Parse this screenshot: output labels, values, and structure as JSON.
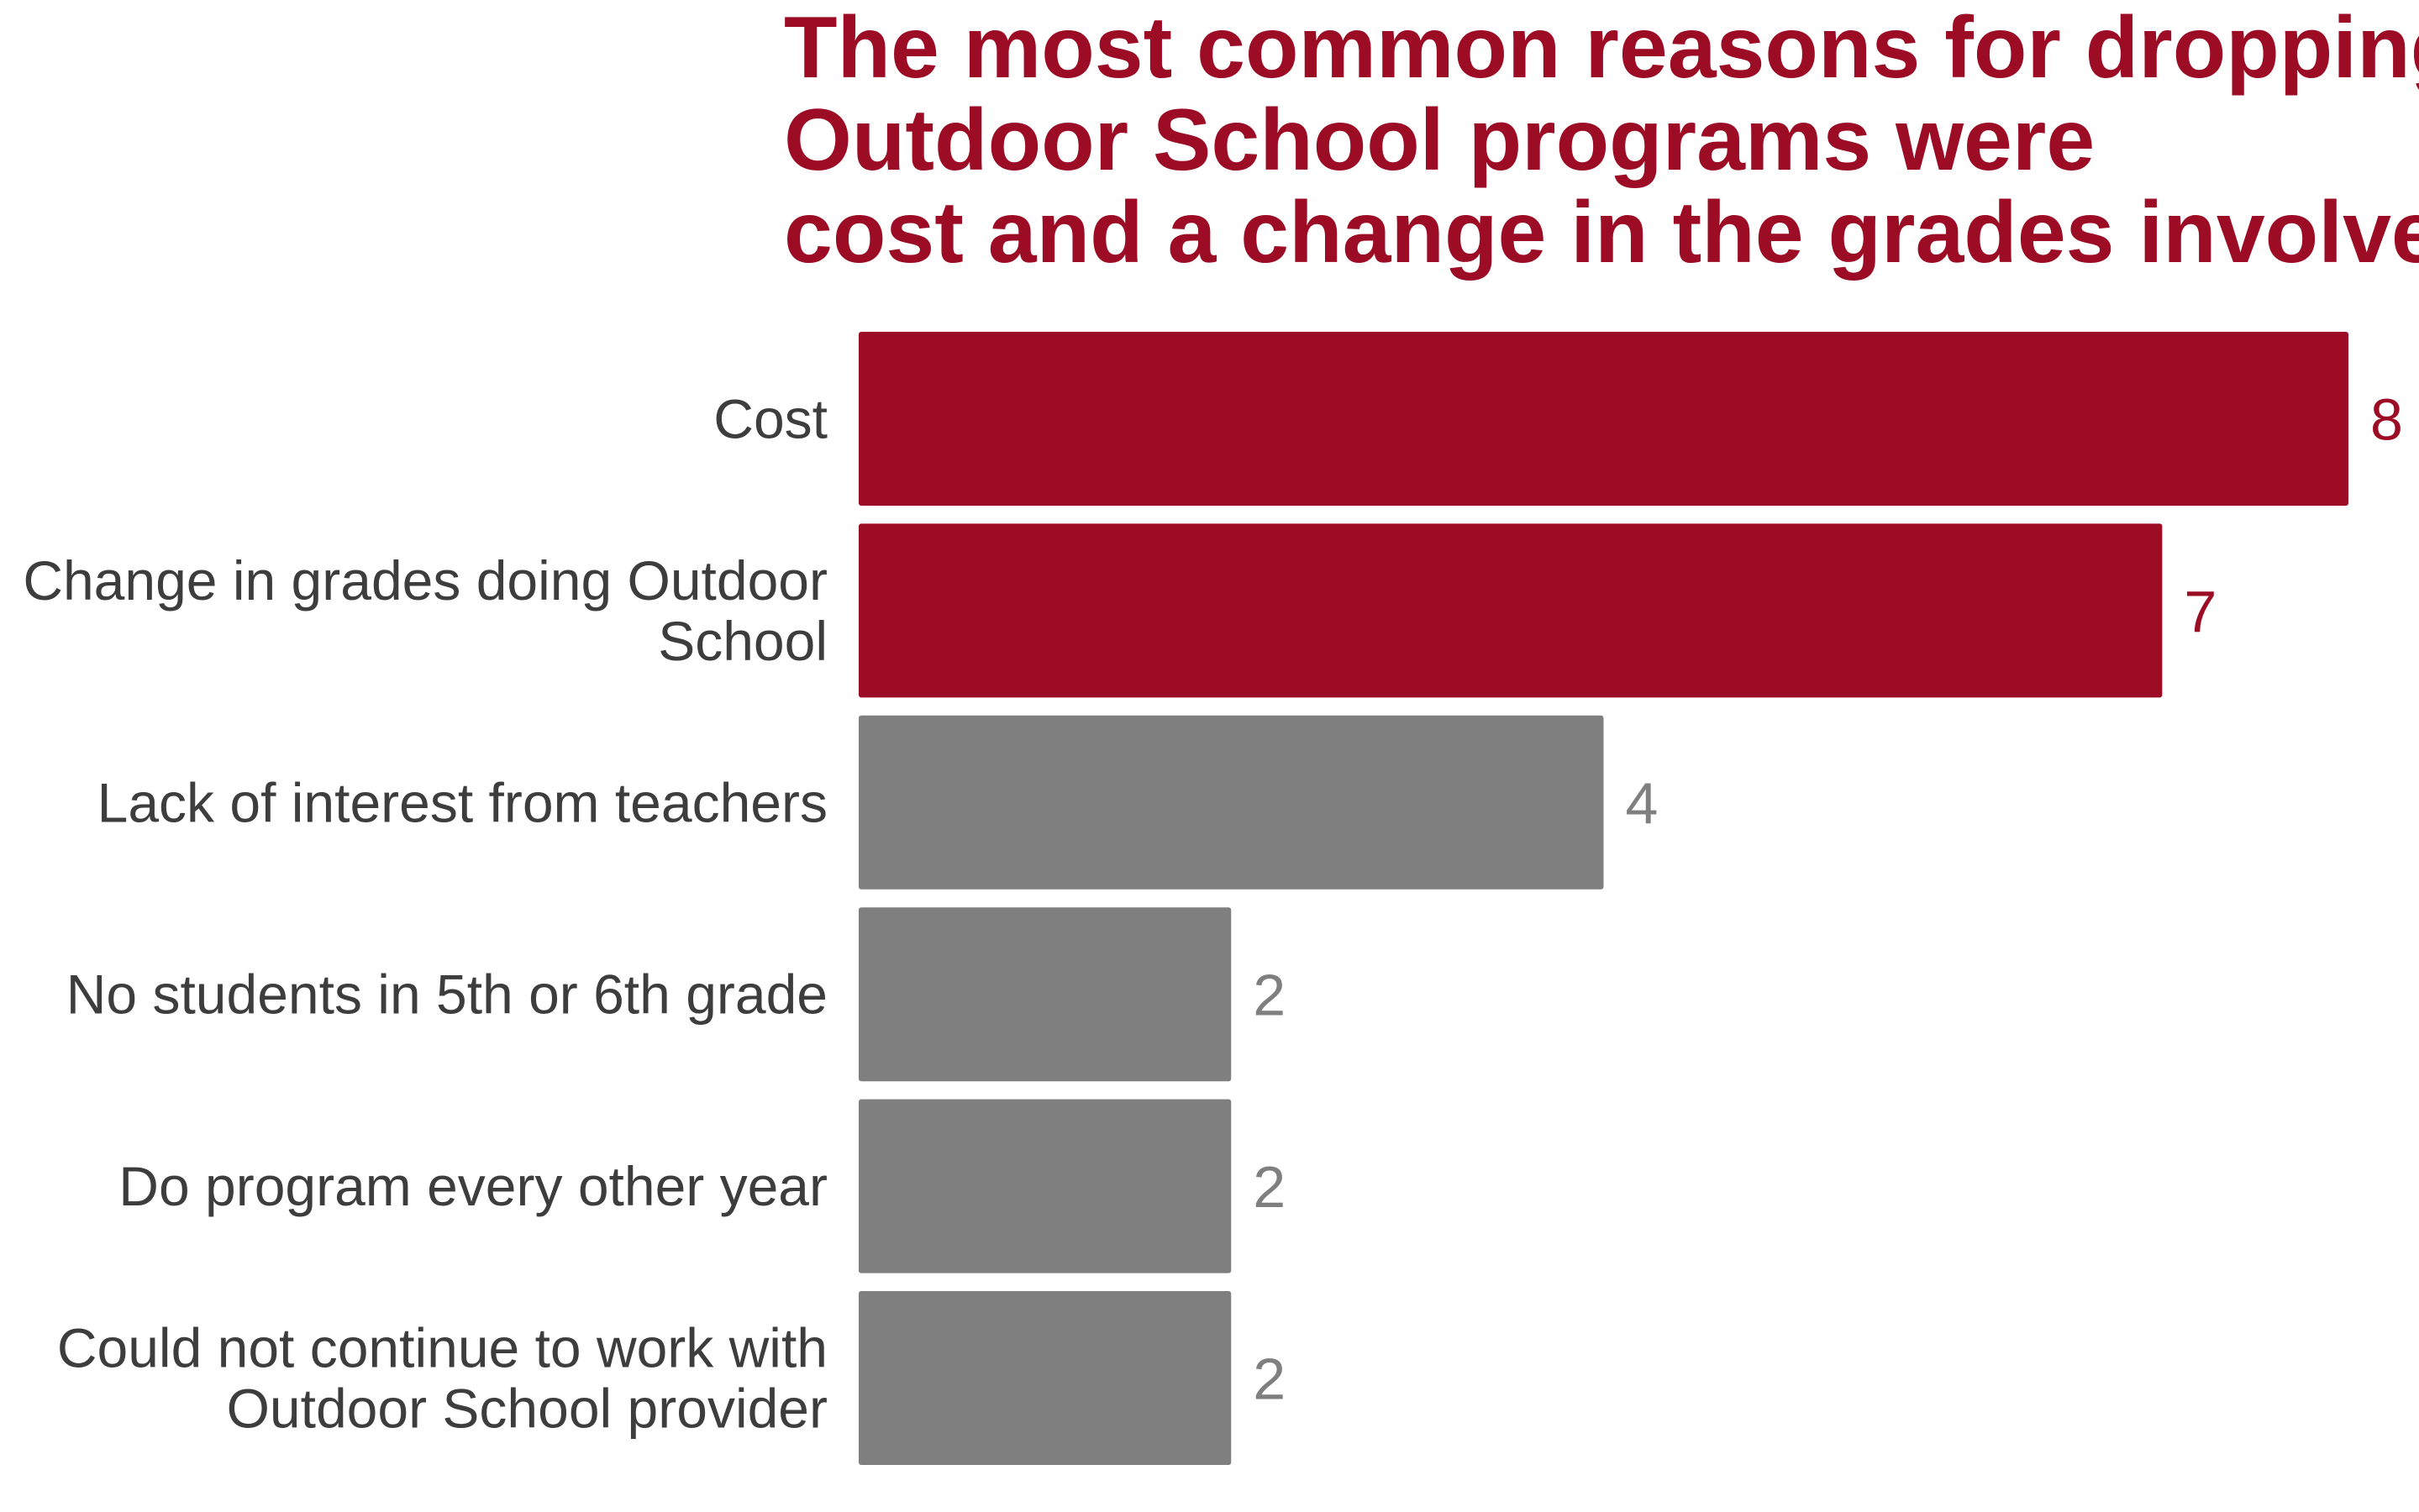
{
  "colors": {
    "highlight": "#9c0c24",
    "muted": "#7f7f7f",
    "label_text": "#3d3d3d",
    "background": "#ffffff"
  },
  "chart_data": {
    "type": "bar",
    "orientation": "horizontal",
    "title": "The most common reasons for dropping Outdoor School programs were cost and a change in the grades involved",
    "title_lines": [
      "The most common reasons for dropping",
      "Outdoor School programs were",
      "cost and a change in the grades involved"
    ],
    "xlabel": "",
    "ylabel": "",
    "xlim": [
      0,
      8
    ],
    "grid": false,
    "legend": "none",
    "categories": [
      "Cost",
      "Change in grades doing Outdoor School",
      "Lack of interest from teachers",
      "No students in 5th or 6th grade",
      "Do program every other year",
      "Could not continue to work with Outdoor School provider"
    ],
    "category_lines": [
      [
        "Cost"
      ],
      [
        "Change in grades doing Outdoor",
        "School"
      ],
      [
        "Lack of interest from teachers"
      ],
      [
        "No students in 5th or 6th grade"
      ],
      [
        "Do program every other year"
      ],
      [
        "Could not continue to work with",
        "Outdoor School provider"
      ]
    ],
    "values": [
      8,
      7,
      4,
      2,
      2,
      2
    ],
    "value_labels": [
      "8",
      "7",
      "4",
      "2",
      "2",
      "2"
    ],
    "highlighted": [
      true,
      true,
      false,
      false,
      false,
      false
    ]
  }
}
